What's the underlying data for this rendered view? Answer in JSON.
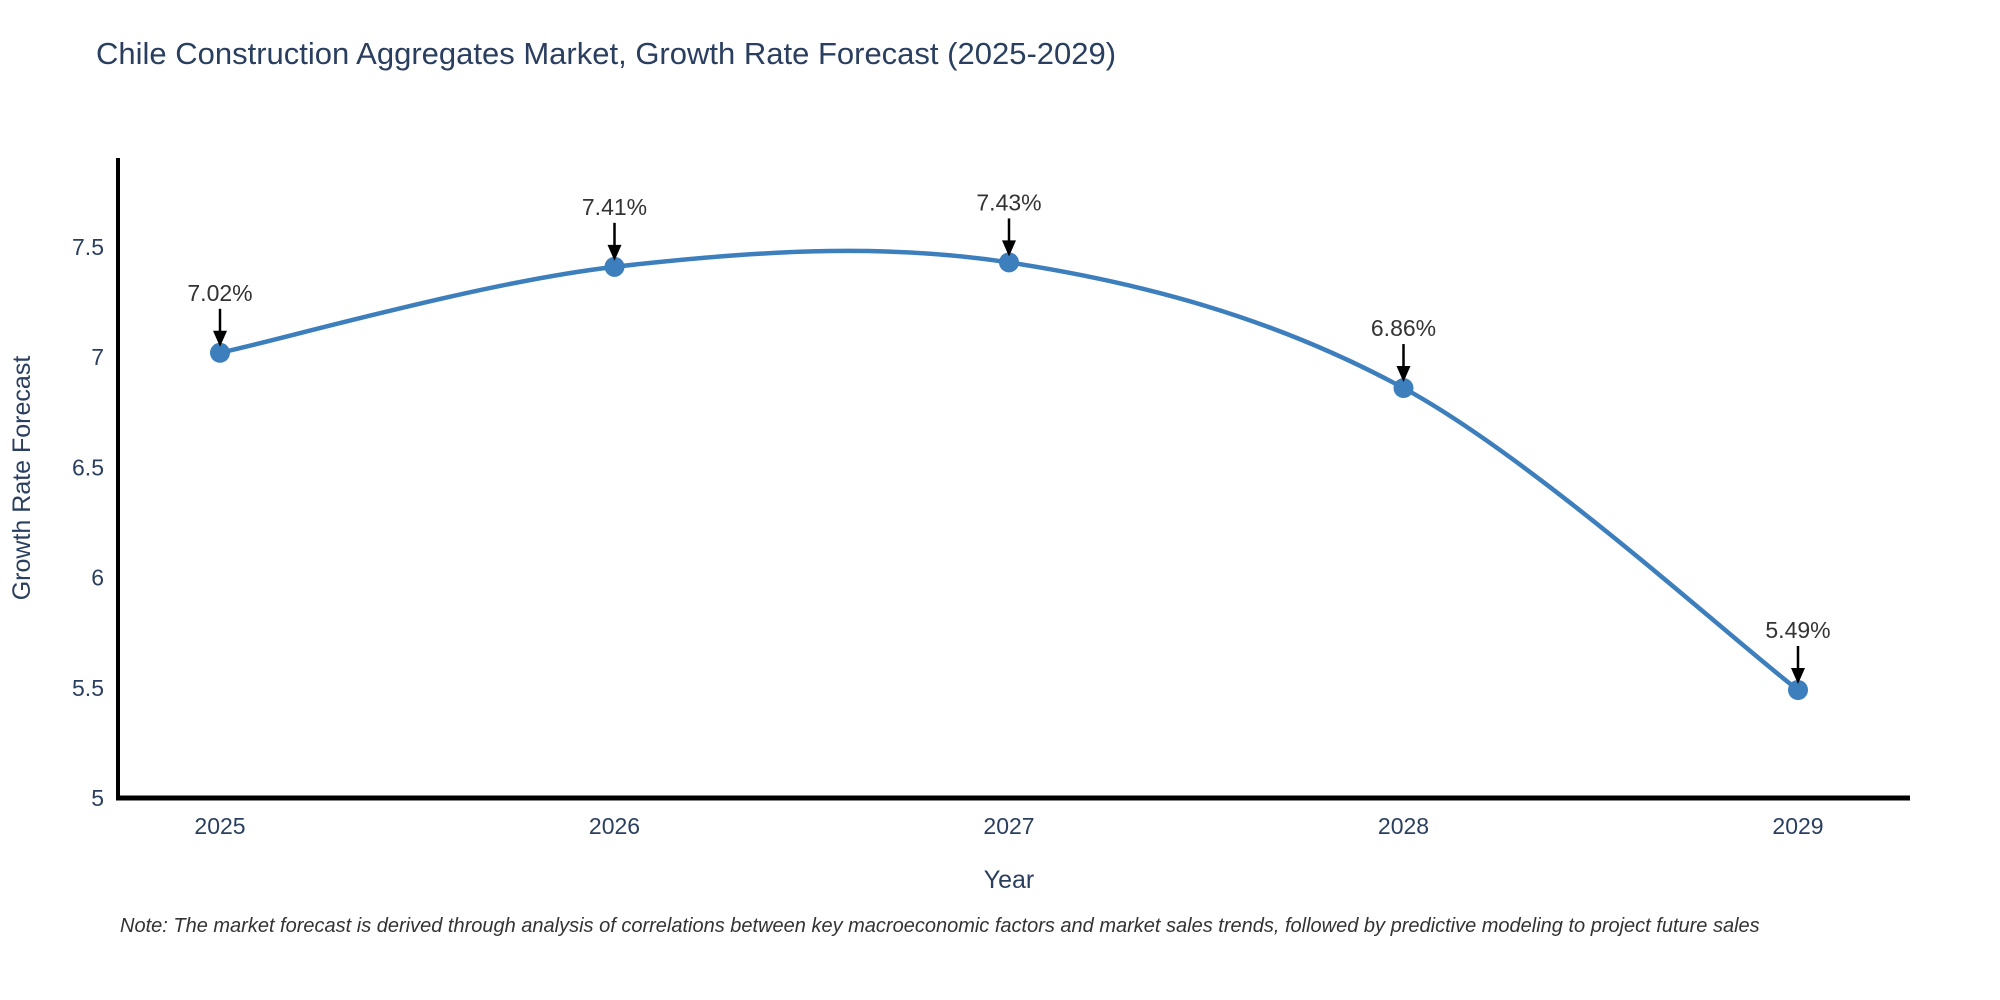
{
  "title": "Chile Construction Aggregates Market, Growth Rate Forecast (2025-2029)",
  "note": "Note: The market forecast is derived through analysis of correlations between key macroeconomic factors and market sales trends, followed by predictive modeling to project future sales",
  "chart_data": {
    "type": "line",
    "title": "Chile Construction Aggregates Market, Growth Rate Forecast (2025-2029)",
    "x": [
      2025,
      2026,
      2027,
      2028,
      2029
    ],
    "series": [
      {
        "name": "Growth Rate Forecast",
        "values": [
          7.02,
          7.41,
          7.43,
          6.86,
          5.49
        ]
      }
    ],
    "point_labels": [
      "7.02%",
      "7.41%",
      "7.43%",
      "6.86%",
      "5.49%"
    ],
    "xlabel": "Year",
    "ylabel": "Growth Rate Forecast",
    "xticks": [
      "2025",
      "2026",
      "2027",
      "2028",
      "2029"
    ],
    "yticks": [
      5,
      5.5,
      6,
      6.5,
      7,
      7.5
    ],
    "ylim": [
      5,
      7.9
    ],
    "grid": false,
    "legend_position": "none",
    "line_shape": "spline",
    "colors": {
      "line": "#3d7ebc",
      "marker": "#3d7ebc",
      "axis": "#000000",
      "tick_text": "#2a3f5f",
      "annotation_text": "#333333",
      "arrow": "#000000"
    }
  }
}
